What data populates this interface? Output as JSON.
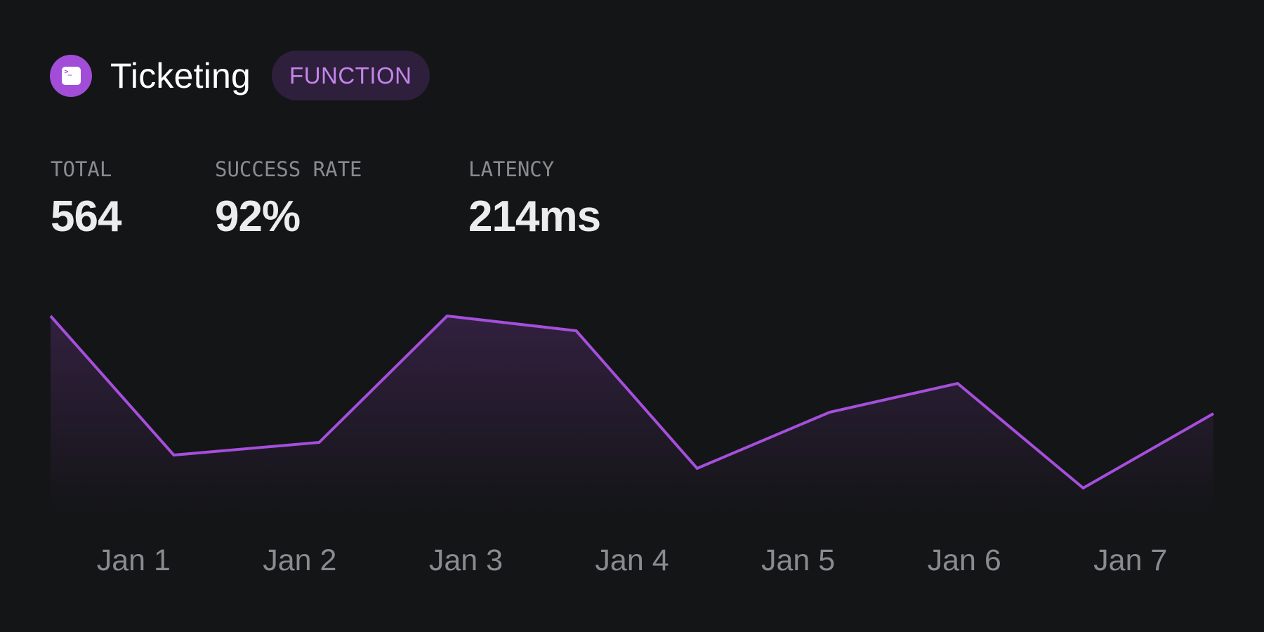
{
  "header": {
    "title": "Ticketing",
    "badge": "FUNCTION",
    "icon": "terminal-icon"
  },
  "stats": [
    {
      "label": "TOTAL",
      "value": "564"
    },
    {
      "label": "SUCCESS RATE",
      "value": "92%"
    },
    {
      "label": "LATENCY",
      "value": "214ms"
    }
  ],
  "colors": {
    "background": "#141517",
    "accent": "#a24dd8",
    "badge_bg": "#2e1f3c",
    "badge_text": "#c585ea",
    "line": "#a54fdc",
    "fill_top": "#32203f",
    "axis_text": "#8a8b8e"
  },
  "chart_data": {
    "type": "area",
    "title": "",
    "xlabel": "",
    "ylabel": "",
    "grid": false,
    "legend": "none",
    "categories": [
      "Jan 1",
      "Jan 2",
      "Jan 3",
      "Jan 4",
      "Jan 5",
      "Jan 6",
      "Jan 7"
    ],
    "series": [
      {
        "name": "Ticketing",
        "x_positions": [
          0,
          0.106,
          0.231,
          0.341,
          0.452,
          0.556,
          0.67,
          0.78,
          0.888,
          1.0
        ],
        "values": [
          280,
          82,
          100,
          280,
          259,
          63,
          143,
          184,
          35,
          141
        ]
      }
    ],
    "ylim": [
      0,
      280
    ]
  }
}
